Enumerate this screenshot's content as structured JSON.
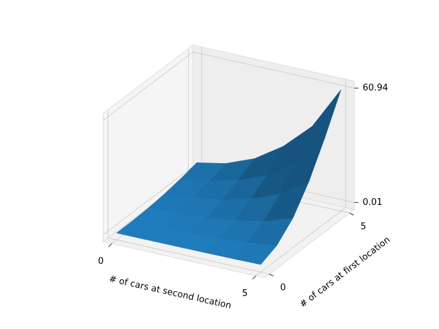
{
  "chart_data": {
    "type": "surface",
    "x": [
      0,
      1,
      2,
      3,
      4,
      5
    ],
    "y": [
      0,
      1,
      2,
      3,
      4,
      5
    ],
    "z": [
      [
        0.01,
        0.02,
        0.05,
        0.1,
        0.2,
        0.4
      ],
      [
        0.1,
        0.2,
        0.5,
        1,
        2,
        4
      ],
      [
        0.5,
        1,
        2,
        4,
        7,
        12
      ],
      [
        1.5,
        3,
        5,
        9,
        15,
        25
      ],
      [
        3,
        5,
        9,
        15,
        25,
        42
      ],
      [
        5,
        8,
        14,
        24,
        38,
        60.94
      ]
    ],
    "xlim": [
      0,
      5
    ],
    "ylim": [
      0,
      5
    ],
    "zlim": [
      0.01,
      60.94
    ],
    "xticks": [
      0,
      5
    ],
    "yticks": [
      0,
      5
    ],
    "zticks": [
      0.01,
      60.94
    ],
    "xlabel": "# of cars at second location",
    "ylabel": "# of cars at first location",
    "color": "#1f77b4",
    "grid": true
  }
}
